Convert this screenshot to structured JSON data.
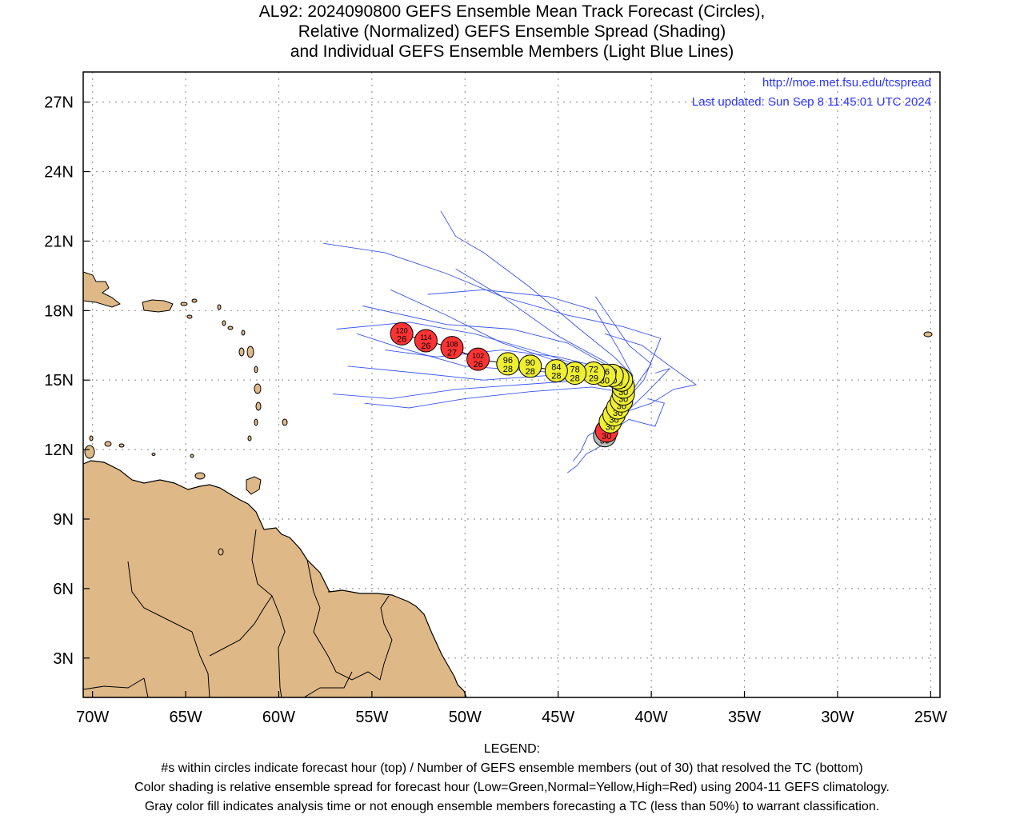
{
  "title": {
    "line1": "AL92: 2024090800 GEFS Ensemble Mean Track Forecast (Circles),",
    "line2": "Relative (Normalized) GEFS Ensemble Spread (Shading)",
    "line3": "and Individual GEFS Ensemble Members (Light Blue Lines)"
  },
  "credit": {
    "url": "http://moe.met.fsu.edu/tcspread",
    "updated": "Last updated: Sun Sep 8 11:45:01 UTC 2024"
  },
  "legend": {
    "heading": "LEGEND:",
    "line1": "#s within circles indicate forecast hour (top) / Number of GEFS ensemble members (out of 30) that resolved the TC (bottom)",
    "line2": "Color shading is relative ensemble spread for forecast hour (Low=Green,Normal=Yellow,High=Red) using 2004-11 GEFS climatology.",
    "line3": "Gray color fill indicates analysis time or not enough ensemble members forecasting a TC (less than 50%) to warrant classification."
  },
  "axes": {
    "lon_labels": [
      "70W",
      "65W",
      "60W",
      "55W",
      "50W",
      "45W",
      "40W",
      "35W",
      "30W",
      "25W"
    ],
    "lon_values": [
      -70,
      -65,
      -60,
      -55,
      -50,
      -45,
      -40,
      -35,
      -30,
      -25
    ],
    "lat_labels": [
      "3N",
      "6N",
      "9N",
      "12N",
      "15N",
      "18N",
      "21N",
      "24N",
      "27N"
    ],
    "lat_values": [
      3,
      6,
      9,
      12,
      15,
      18,
      21,
      24,
      27
    ],
    "lon_range": [
      -70.5,
      -24.5
    ],
    "lat_range": [
      1.3,
      28.3
    ],
    "grid": "dotted"
  },
  "colors": {
    "land": "#deb887",
    "member_tracks": "#3a55f0",
    "spread_low": "#33cc33",
    "spread_normal": "#eeee33",
    "spread_high": "#ff3333",
    "analysis": "#bbbbbb",
    "credit_text": "#2b35ff"
  },
  "mean_track": [
    {
      "hour": "0",
      "members": "30",
      "lat": 12.6,
      "lon": -42.5,
      "spread": "analysis"
    },
    {
      "hour": "6",
      "members": "30",
      "lat": 12.8,
      "lon": -42.4,
      "spread": "high"
    },
    {
      "hour": "12",
      "members": "30",
      "lat": 13.2,
      "lon": -42.2,
      "spread": "normal"
    },
    {
      "hour": "18",
      "members": "30",
      "lat": 13.5,
      "lon": -42.0,
      "spread": "normal"
    },
    {
      "hour": "24",
      "members": "30",
      "lat": 13.8,
      "lon": -41.8,
      "spread": "normal"
    },
    {
      "hour": "30",
      "members": "30",
      "lat": 14.1,
      "lon": -41.6,
      "spread": "normal"
    },
    {
      "hour": "36",
      "members": "30",
      "lat": 14.4,
      "lon": -41.5,
      "spread": "normal"
    },
    {
      "hour": "42",
      "members": "30",
      "lat": 14.7,
      "lon": -41.5,
      "spread": "normal"
    },
    {
      "hour": "48",
      "members": "30",
      "lat": 15.0,
      "lon": -41.6,
      "spread": "normal"
    },
    {
      "hour": "54",
      "members": "30",
      "lat": 15.1,
      "lon": -41.8,
      "spread": "normal"
    },
    {
      "hour": "60",
      "members": "30",
      "lat": 15.2,
      "lon": -42.1,
      "spread": "normal"
    },
    {
      "hour": "66",
      "members": "30",
      "lat": 15.2,
      "lon": -42.5,
      "spread": "normal"
    },
    {
      "hour": "72",
      "members": "29",
      "lat": 15.3,
      "lon": -43.1,
      "spread": "normal"
    },
    {
      "hour": "78",
      "members": "28",
      "lat": 15.3,
      "lon": -44.1,
      "spread": "normal"
    },
    {
      "hour": "84",
      "members": "28",
      "lat": 15.4,
      "lon": -45.1,
      "spread": "normal"
    },
    {
      "hour": "90",
      "members": "28",
      "lat": 15.6,
      "lon": -46.5,
      "spread": "normal"
    },
    {
      "hour": "96",
      "members": "28",
      "lat": 15.7,
      "lon": -47.7,
      "spread": "normal"
    },
    {
      "hour": "102",
      "members": "26",
      "lat": 15.9,
      "lon": -49.3,
      "spread": "high"
    },
    {
      "hour": "108",
      "members": "27",
      "lat": 16.4,
      "lon": -50.7,
      "spread": "high"
    },
    {
      "hour": "114",
      "members": "26",
      "lat": 16.7,
      "lon": -52.1,
      "spread": "high"
    },
    {
      "hour": "120",
      "members": "26",
      "lat": 17.0,
      "lon": -53.4,
      "spread": "high"
    }
  ],
  "member_tracks": [
    [
      [
        -42.5,
        12.6
      ],
      [
        -41.8,
        13.8
      ],
      [
        -41.5,
        14.8
      ],
      [
        -42.5,
        15.3
      ],
      [
        -45,
        15.8
      ],
      [
        -48,
        16.6
      ],
      [
        -51,
        17.8
      ],
      [
        -54,
        18.9
      ]
    ],
    [
      [
        -42.5,
        12.6
      ],
      [
        -41.6,
        14.0
      ],
      [
        -41.0,
        15.2
      ],
      [
        -42.0,
        16.0
      ],
      [
        -44,
        17.3
      ],
      [
        -46.5,
        19.0
      ],
      [
        -49,
        20.5
      ],
      [
        -50.5,
        21.2
      ],
      [
        -51.3,
        22.3
      ]
    ],
    [
      [
        -42.5,
        12.6
      ],
      [
        -41.7,
        13.9
      ],
      [
        -41.2,
        15.0
      ],
      [
        -42.5,
        15.8
      ],
      [
        -45,
        16.9
      ],
      [
        -48,
        18.6
      ],
      [
        -51,
        19.6
      ],
      [
        -54.3,
        20.5
      ],
      [
        -57.6,
        20.9
      ]
    ],
    [
      [
        -42.5,
        12.6
      ],
      [
        -41.8,
        13.8
      ],
      [
        -41.6,
        14.8
      ],
      [
        -43,
        15.4
      ],
      [
        -46,
        16.2
      ],
      [
        -49.5,
        17.0
      ],
      [
        -53,
        17.5
      ],
      [
        -56.9,
        17.2
      ]
    ],
    [
      [
        -42.5,
        12.6
      ],
      [
        -41.9,
        13.7
      ],
      [
        -41.6,
        14.9
      ],
      [
        -43.2,
        15.2
      ],
      [
        -46.5,
        15.4
      ],
      [
        -50,
        15.6
      ],
      [
        -53.5,
        16.4
      ],
      [
        -55.8,
        17.0
      ]
    ],
    [
      [
        -42.5,
        12.6
      ],
      [
        -41.7,
        13.7
      ],
      [
        -41.5,
        14.6
      ],
      [
        -43.5,
        15.0
      ],
      [
        -47,
        14.8
      ],
      [
        -50.5,
        14.6
      ],
      [
        -54,
        14.2
      ],
      [
        -57.1,
        14.4
      ]
    ],
    [
      [
        -42.5,
        12.6
      ],
      [
        -41.8,
        13.6
      ],
      [
        -41.7,
        14.5
      ],
      [
        -43.2,
        14.7
      ],
      [
        -46.5,
        14.5
      ],
      [
        -50,
        14.2
      ],
      [
        -53,
        13.8
      ],
      [
        -55.4,
        14.0
      ]
    ],
    [
      [
        -42.5,
        12.6
      ],
      [
        -41.6,
        13.8
      ],
      [
        -41.3,
        14.9
      ],
      [
        -42.5,
        15.5
      ],
      [
        -45,
        16.0
      ],
      [
        -48,
        16.3
      ],
      [
        -51.5,
        16.0
      ],
      [
        -54.3,
        16.3
      ]
    ],
    [
      [
        -42.5,
        12.6
      ],
      [
        -41.6,
        13.8
      ],
      [
        -41.0,
        15.2
      ],
      [
        -41.8,
        16.4
      ],
      [
        -43,
        18.0
      ],
      [
        -45.5,
        18.6
      ],
      [
        -49,
        18.9
      ],
      [
        -52,
        18.7
      ]
    ],
    [
      [
        -42.5,
        12.6
      ],
      [
        -41.7,
        13.7
      ],
      [
        -41.3,
        14.8
      ],
      [
        -42.3,
        15.6
      ],
      [
        -44.5,
        16.6
      ],
      [
        -47.5,
        17.2
      ],
      [
        -51,
        17.4
      ],
      [
        -55.5,
        18.2
      ]
    ],
    [
      [
        -42.5,
        12.6
      ],
      [
        -41.8,
        13.6
      ],
      [
        -41.5,
        14.6
      ],
      [
        -42.8,
        15.1
      ],
      [
        -45.5,
        15.2
      ],
      [
        -49,
        15.0
      ],
      [
        -52.5,
        15.3
      ],
      [
        -56.3,
        15.6
      ]
    ],
    [
      [
        -42.5,
        12.6
      ],
      [
        -41.6,
        13.9
      ],
      [
        -40.4,
        15.0
      ],
      [
        -39.5,
        16.8
      ],
      [
        -41.5,
        17.3
      ],
      [
        -44.5,
        17.8
      ],
      [
        -48,
        18.6
      ],
      [
        -50.5,
        19.8
      ]
    ],
    [
      [
        -42.5,
        12.6
      ],
      [
        -42.6,
        12.2
      ],
      [
        -43.5,
        11.8
      ],
      [
        -44.0,
        11.3
      ],
      [
        -44.5,
        11.0
      ]
    ],
    [
      [
        -42.5,
        12.6
      ],
      [
        -41.9,
        13.6
      ],
      [
        -42.5,
        13.0
      ],
      [
        -43.4,
        12.6
      ],
      [
        -43.8,
        11.9
      ],
      [
        -44.2,
        11.5
      ]
    ],
    [
      [
        -42.5,
        12.6
      ],
      [
        -41.5,
        13.6
      ],
      [
        -40.0,
        14.0
      ],
      [
        -38.8,
        14.6
      ],
      [
        -37.6,
        14.8
      ],
      [
        -39.0,
        15.6
      ],
      [
        -40.5,
        16.5
      ],
      [
        -42.5,
        17.0
      ]
    ],
    [
      [
        -42.5,
        12.6
      ],
      [
        -41.2,
        13.3
      ],
      [
        -39.8,
        13.0
      ],
      [
        -39.3,
        14.0
      ],
      [
        -40.2,
        14.2
      ]
    ],
    [
      [
        -42.5,
        12.6
      ],
      [
        -41.5,
        13.5
      ],
      [
        -40.2,
        14.5
      ],
      [
        -39.0,
        15.5
      ],
      [
        -39.8,
        15.3
      ]
    ],
    [
      [
        -42.5,
        12.6
      ],
      [
        -41.6,
        13.7
      ],
      [
        -40.8,
        14.8
      ],
      [
        -40.0,
        15.7
      ],
      [
        -41.2,
        16.5
      ],
      [
        -43,
        18.6
      ]
    ]
  ]
}
